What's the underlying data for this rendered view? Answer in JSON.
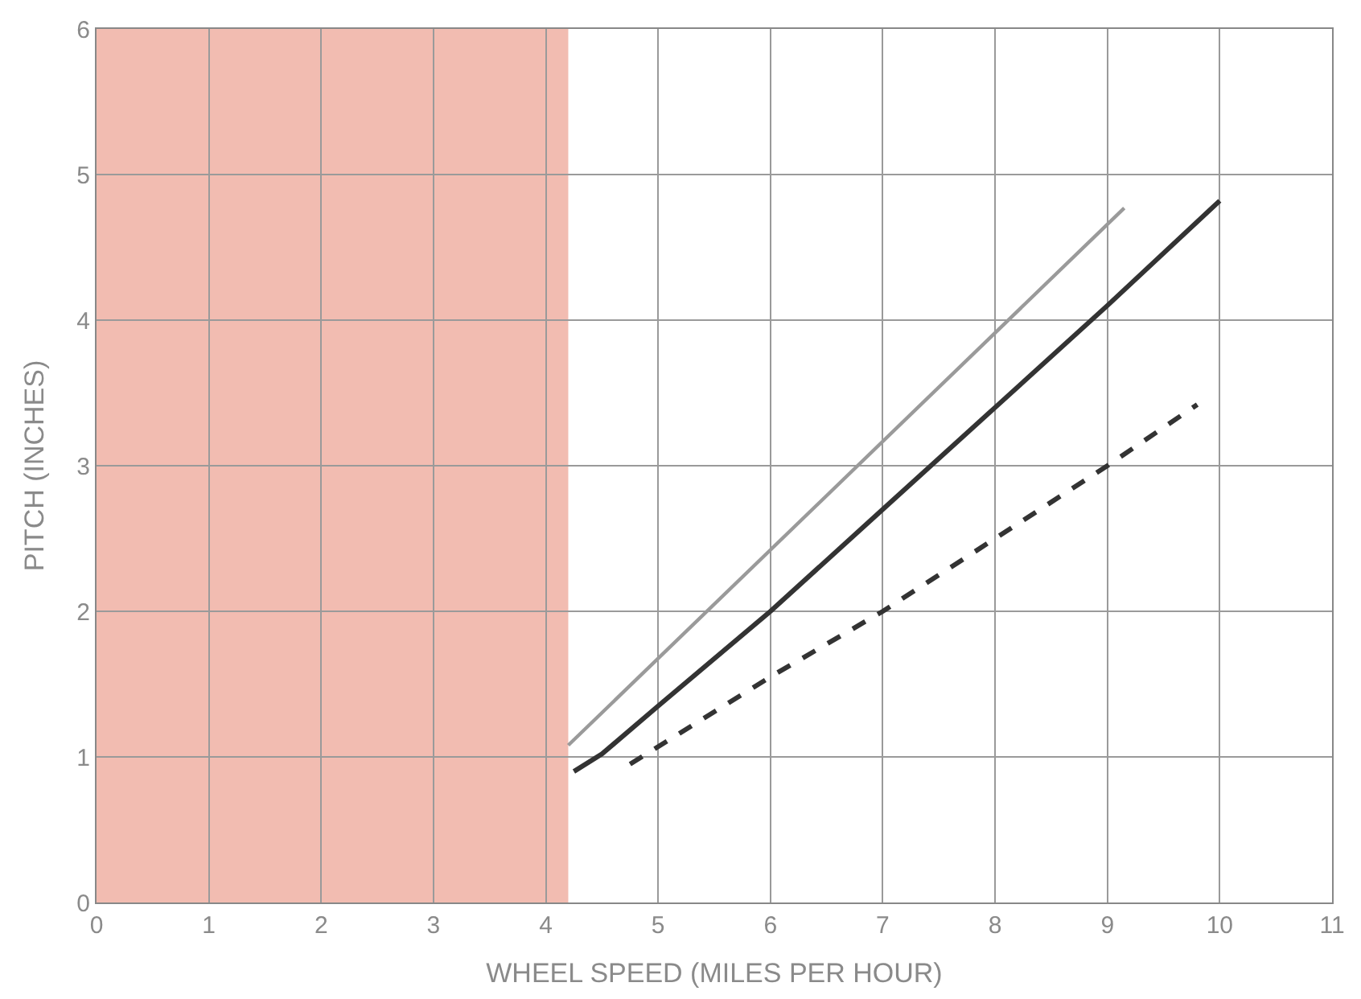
{
  "chart_data": {
    "type": "line",
    "xlabel": "WHEEL SPEED (MILES PER HOUR)",
    "ylabel": "PITCH (INCHES)",
    "xlim": [
      0,
      11
    ],
    "ylim": [
      0,
      6
    ],
    "xticks": [
      0,
      1,
      2,
      3,
      4,
      5,
      6,
      7,
      8,
      9,
      10,
      11
    ],
    "yticks": [
      0,
      1,
      2,
      3,
      4,
      5,
      6
    ],
    "grid": true,
    "bands": [
      {
        "axis": "x",
        "from": 0,
        "to": 4.2,
        "color": "#f2bcb1"
      }
    ],
    "series": [
      {
        "color": "#9a9a9a",
        "x": [
          4.2,
          9.15
        ],
        "values": [
          1.08,
          4.77
        ],
        "line_style": "solid"
      },
      {
        "color": "#333333",
        "x": [
          4.25,
          4.5,
          5,
          6,
          7,
          8,
          9,
          10
        ],
        "values": [
          0.9,
          1.02,
          1.35,
          2.0,
          2.7,
          3.4,
          4.1,
          4.82
        ],
        "line_style": "solid"
      },
      {
        "color": "#333333",
        "x": [
          4.75,
          6,
          7,
          8,
          9,
          9.8
        ],
        "values": [
          0.95,
          1.55,
          2.0,
          2.5,
          3.0,
          3.42
        ],
        "line_style": "dashed"
      }
    ]
  }
}
